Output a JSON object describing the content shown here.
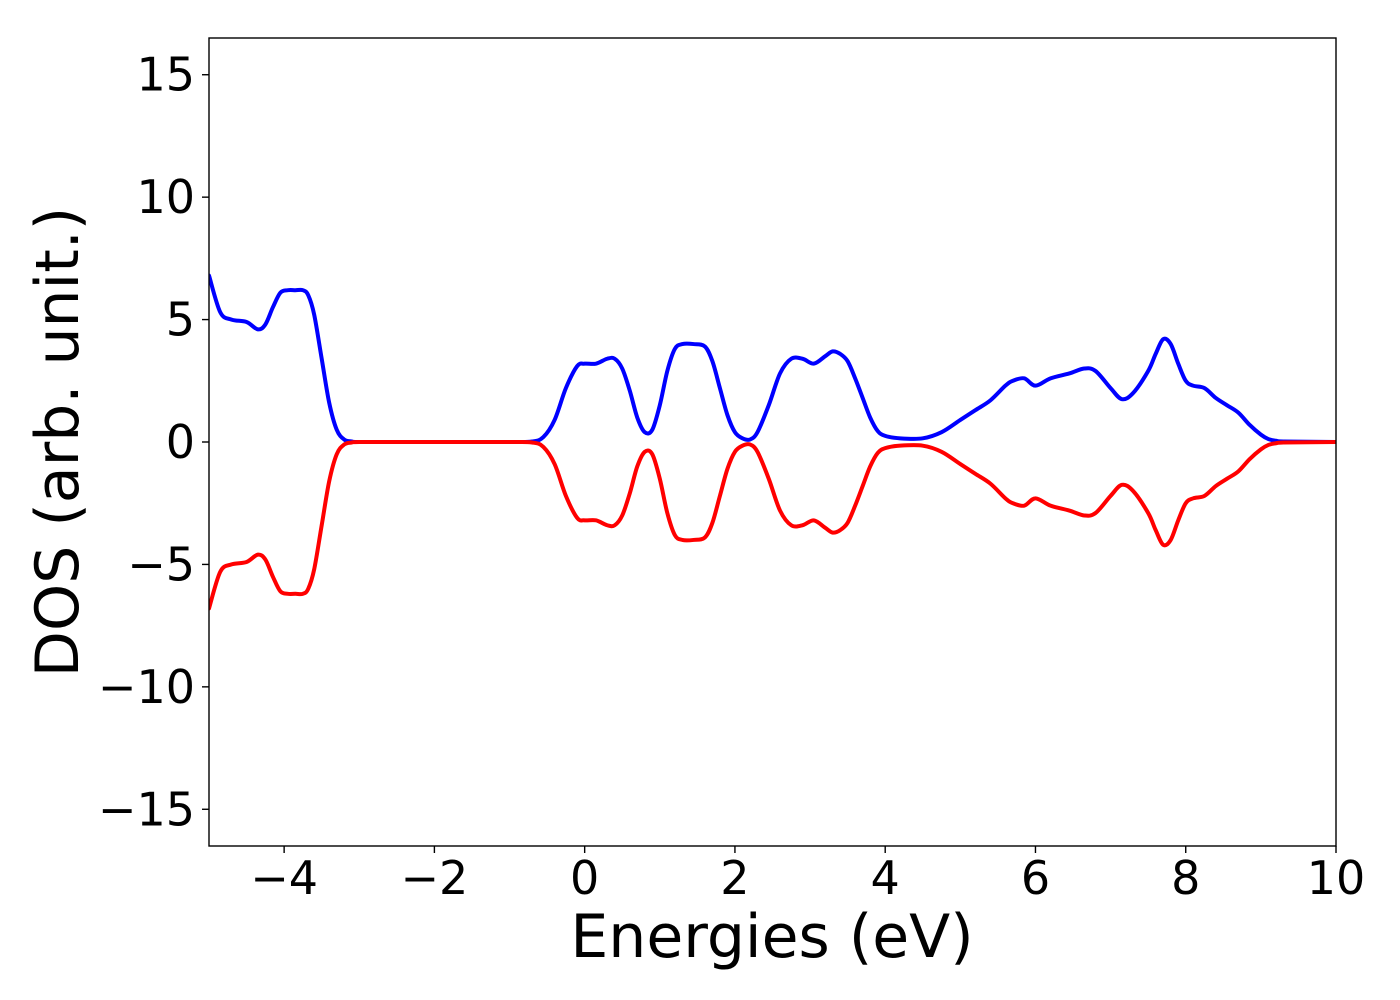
{
  "chart_data": {
    "type": "line",
    "title": "",
    "xlabel": "Energies (eV)",
    "ylabel": "DOS (arb. unit.)",
    "xlim": [
      -5,
      10
    ],
    "ylim": [
      -16.5,
      16.5
    ],
    "grid": false,
    "x_ticks": [
      {
        "value": -4,
        "label": "−4"
      },
      {
        "value": -2,
        "label": "−2"
      },
      {
        "value": 0,
        "label": "0"
      },
      {
        "value": 2,
        "label": "2"
      },
      {
        "value": 4,
        "label": "4"
      },
      {
        "value": 6,
        "label": "6"
      },
      {
        "value": 8,
        "label": "8"
      },
      {
        "value": 10,
        "label": "10"
      }
    ],
    "y_ticks": [
      {
        "value": 15,
        "label": "15"
      },
      {
        "value": 10,
        "label": "10"
      },
      {
        "value": 5,
        "label": "5"
      },
      {
        "value": 0,
        "label": "0"
      },
      {
        "value": -5,
        "label": "−5"
      },
      {
        "value": -10,
        "label": "−10"
      },
      {
        "value": -15,
        "label": "−15"
      }
    ],
    "series": [
      {
        "color": "#0000ff",
        "x": [
          -5.0,
          -4.85,
          -4.7,
          -4.5,
          -4.35,
          -4.25,
          -4.15,
          -4.05,
          -3.95,
          -3.85,
          -3.75,
          -3.68,
          -3.6,
          -3.5,
          -3.4,
          -3.3,
          -3.2,
          -3.1,
          -3.0,
          -2.0,
          -1.0,
          -0.7,
          -0.55,
          -0.4,
          -0.25,
          -0.1,
          0.0,
          0.15,
          0.3,
          0.4,
          0.5,
          0.6,
          0.7,
          0.8,
          0.9,
          1.0,
          1.1,
          1.2,
          1.3,
          1.45,
          1.6,
          1.7,
          1.8,
          1.9,
          2.0,
          2.1,
          2.2,
          2.3,
          2.45,
          2.6,
          2.75,
          2.9,
          3.05,
          3.2,
          3.3,
          3.4,
          3.5,
          3.6,
          3.7,
          3.8,
          3.9,
          4.0,
          4.2,
          4.5,
          4.75,
          5.0,
          5.2,
          5.4,
          5.6,
          5.7,
          5.85,
          6.0,
          6.2,
          6.45,
          6.65,
          6.8,
          7.0,
          7.15,
          7.3,
          7.5,
          7.6,
          7.7,
          7.8,
          7.9,
          8.0,
          8.1,
          8.25,
          8.4,
          8.55,
          8.7,
          8.85,
          9.0,
          9.1,
          9.2,
          9.3,
          10.0
        ],
        "y": [
          6.8,
          5.3,
          5.0,
          4.9,
          4.6,
          4.8,
          5.5,
          6.1,
          6.2,
          6.2,
          6.2,
          6.0,
          5.2,
          3.4,
          1.6,
          0.5,
          0.1,
          0.02,
          0.0,
          0.0,
          0.0,
          0.02,
          0.2,
          0.9,
          2.2,
          3.1,
          3.2,
          3.2,
          3.4,
          3.4,
          3.0,
          2.1,
          1.0,
          0.4,
          0.5,
          1.5,
          2.9,
          3.8,
          4.0,
          4.0,
          3.9,
          3.3,
          2.2,
          1.1,
          0.4,
          0.15,
          0.1,
          0.4,
          1.5,
          2.8,
          3.4,
          3.4,
          3.2,
          3.5,
          3.7,
          3.6,
          3.3,
          2.6,
          1.8,
          1.0,
          0.45,
          0.25,
          0.15,
          0.15,
          0.4,
          0.9,
          1.3,
          1.7,
          2.3,
          2.5,
          2.6,
          2.3,
          2.6,
          2.8,
          3.0,
          2.9,
          2.2,
          1.75,
          2.0,
          2.9,
          3.6,
          4.2,
          4.0,
          3.2,
          2.5,
          2.3,
          2.2,
          1.8,
          1.5,
          1.2,
          0.7,
          0.3,
          0.12,
          0.05,
          0.02,
          0.0
        ]
      },
      {
        "color": "#ff0000",
        "x": [
          -5.0,
          -4.85,
          -4.7,
          -4.5,
          -4.35,
          -4.25,
          -4.15,
          -4.05,
          -3.95,
          -3.85,
          -3.75,
          -3.68,
          -3.6,
          -3.5,
          -3.4,
          -3.3,
          -3.2,
          -3.1,
          -3.0,
          -2.0,
          -1.0,
          -0.7,
          -0.55,
          -0.4,
          -0.25,
          -0.1,
          0.0,
          0.15,
          0.3,
          0.4,
          0.5,
          0.6,
          0.7,
          0.8,
          0.9,
          1.0,
          1.1,
          1.2,
          1.3,
          1.45,
          1.6,
          1.7,
          1.8,
          1.9,
          2.0,
          2.1,
          2.2,
          2.3,
          2.45,
          2.6,
          2.75,
          2.9,
          3.05,
          3.2,
          3.3,
          3.4,
          3.5,
          3.6,
          3.7,
          3.8,
          3.9,
          4.0,
          4.2,
          4.5,
          4.75,
          5.0,
          5.2,
          5.4,
          5.6,
          5.7,
          5.85,
          6.0,
          6.2,
          6.45,
          6.65,
          6.8,
          7.0,
          7.15,
          7.3,
          7.5,
          7.6,
          7.7,
          7.8,
          7.9,
          8.0,
          8.1,
          8.25,
          8.4,
          8.55,
          8.7,
          8.85,
          9.0,
          9.1,
          9.2,
          9.3,
          10.0
        ],
        "y": [
          -6.8,
          -5.3,
          -5.0,
          -4.9,
          -4.6,
          -4.8,
          -5.5,
          -6.1,
          -6.2,
          -6.2,
          -6.2,
          -6.0,
          -5.2,
          -3.4,
          -1.6,
          -0.5,
          -0.1,
          -0.02,
          0.0,
          0.0,
          0.0,
          -0.02,
          -0.2,
          -0.9,
          -2.2,
          -3.1,
          -3.2,
          -3.2,
          -3.4,
          -3.4,
          -3.0,
          -2.1,
          -1.0,
          -0.4,
          -0.5,
          -1.5,
          -2.9,
          -3.8,
          -4.0,
          -4.0,
          -3.9,
          -3.3,
          -2.2,
          -1.1,
          -0.4,
          -0.15,
          -0.1,
          -0.4,
          -1.5,
          -2.8,
          -3.4,
          -3.4,
          -3.2,
          -3.5,
          -3.7,
          -3.6,
          -3.3,
          -2.6,
          -1.8,
          -1.0,
          -0.45,
          -0.25,
          -0.15,
          -0.15,
          -0.4,
          -0.9,
          -1.3,
          -1.7,
          -2.3,
          -2.5,
          -2.6,
          -2.3,
          -2.6,
          -2.8,
          -3.0,
          -2.9,
          -2.2,
          -1.75,
          -2.0,
          -2.9,
          -3.6,
          -4.2,
          -4.0,
          -3.2,
          -2.5,
          -2.3,
          -2.2,
          -1.8,
          -1.5,
          -1.2,
          -0.7,
          -0.3,
          -0.12,
          -0.05,
          -0.02,
          0.0
        ]
      }
    ]
  }
}
